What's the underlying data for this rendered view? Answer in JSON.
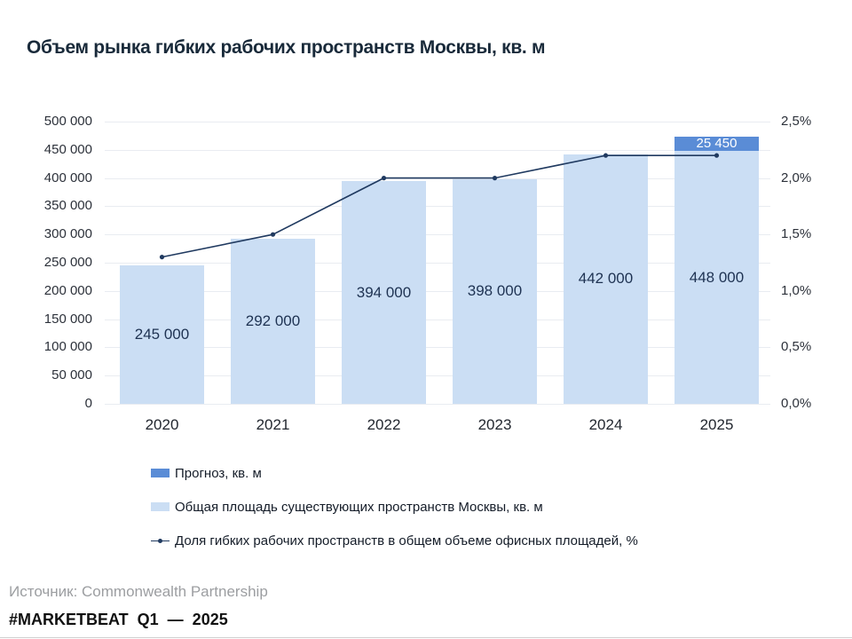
{
  "title": "Объем рынка гибких рабочих пространств Москвы, кв. м",
  "source": "Источник: Commonwealth Partnership",
  "footer": "#MARKETBEAT Q1 — 2025",
  "colors": {
    "forecast": "#5a8cd6",
    "existing": "#cbdef4",
    "line": "#203a60",
    "grid": "#e9ecf1"
  },
  "chart_data": {
    "type": "bar",
    "title": "Объем рынка гибких рабочих пространств Москвы, кв. м",
    "categories": [
      "2020",
      "2021",
      "2022",
      "2023",
      "2024",
      "2025"
    ],
    "series": [
      {
        "name": "Общая площадь существующих пространств Москвы, кв. м",
        "type": "bar",
        "values": [
          245000,
          292000,
          394000,
          398000,
          442000,
          448000
        ],
        "labels": [
          "245 000",
          "292 000",
          "394 000",
          "398 000",
          "442 000",
          "448 000"
        ]
      },
      {
        "name": "Прогноз, кв. м",
        "type": "bar-stacked",
        "values": [
          0,
          0,
          0,
          0,
          0,
          25450
        ],
        "labels": [
          "",
          "",
          "",
          "",
          "",
          "25 450"
        ]
      },
      {
        "name": "Доля гибких рабочих пространств в общем объеме офисных площадей, %",
        "type": "line",
        "values": [
          1.3,
          1.5,
          2.0,
          2.0,
          2.2,
          2.2
        ]
      }
    ],
    "left_axis": {
      "min": 0,
      "max": 500000,
      "ticks": [
        "500 000",
        "450 000",
        "400 000",
        "350 000",
        "300 000",
        "250 000",
        "200 000",
        "150 000",
        "100 000",
        "50 000",
        "0"
      ]
    },
    "right_axis": {
      "min": 0,
      "max": 2.5,
      "ticks": [
        "2,5%",
        "2,0%",
        "1,5%",
        "1,0%",
        "0,5%",
        "0,0%"
      ]
    },
    "grid": true,
    "legend_position": "bottom-left"
  },
  "legend": {
    "items": [
      {
        "label": "Прогноз, кв. м",
        "swatch": "forecast"
      },
      {
        "label": "Общая площадь существующих пространств Москвы, кв. м",
        "swatch": "existing"
      },
      {
        "label": "Доля гибких рабочих пространств в общем объеме офисных площадей, %",
        "swatch": "line"
      }
    ]
  }
}
